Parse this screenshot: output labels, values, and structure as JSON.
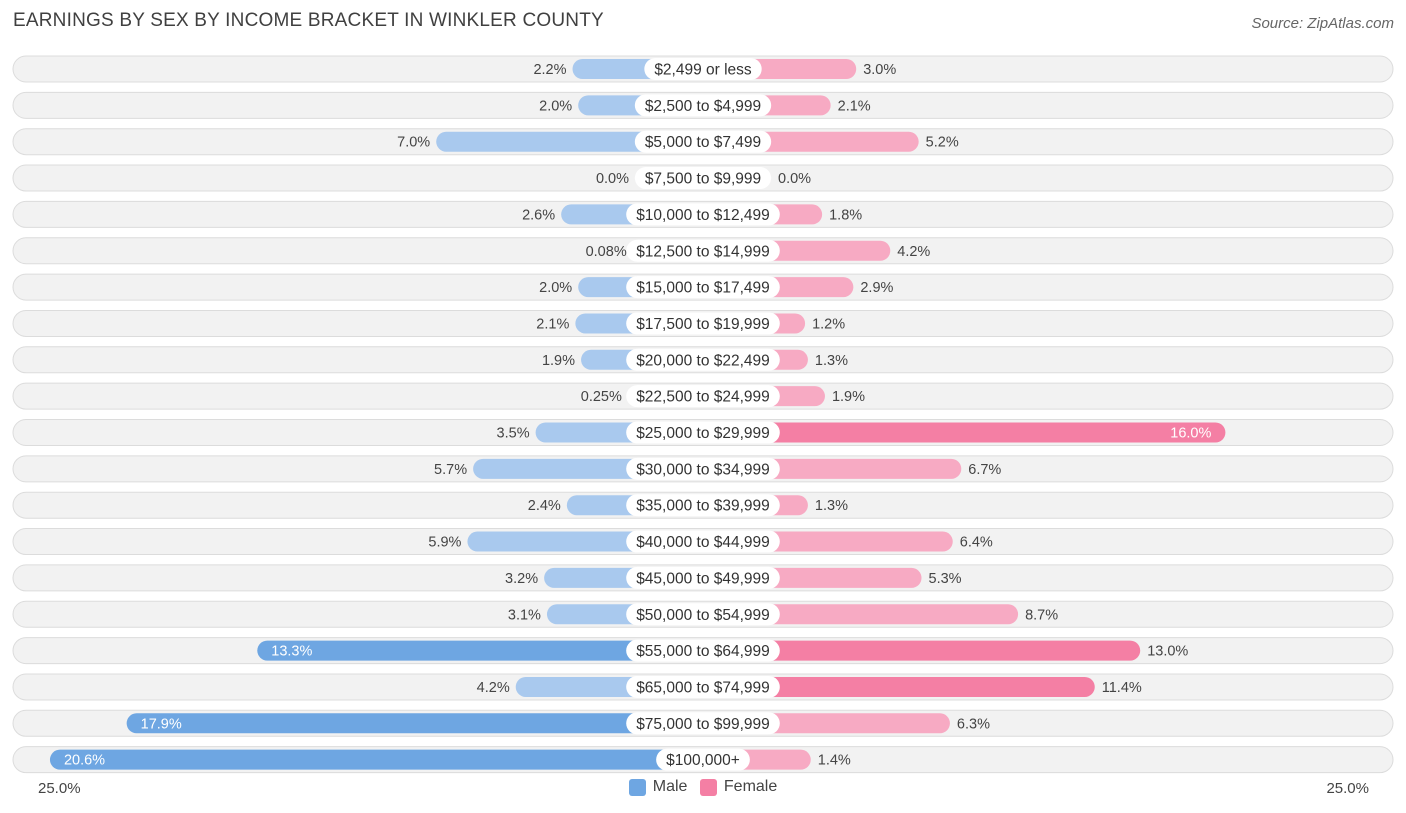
{
  "chart_data": {
    "type": "bar",
    "orientation": "horizontal-diverging",
    "title": "EARNINGS BY SEX BY INCOME BRACKET IN WINKLER COUNTY",
    "source": "Source: ZipAtlas.com",
    "xlim": [
      0,
      25.0
    ],
    "axis_labels": {
      "left": "25.0%",
      "right": "25.0%"
    },
    "categories": [
      "$2,499 or less",
      "$2,500 to $4,999",
      "$5,000 to $7,499",
      "$7,500 to $9,999",
      "$10,000 to $12,499",
      "$12,500 to $14,999",
      "$15,000 to $17,499",
      "$17,500 to $19,999",
      "$20,000 to $22,499",
      "$22,500 to $24,999",
      "$25,000 to $29,999",
      "$30,000 to $34,999",
      "$35,000 to $39,999",
      "$40,000 to $44,999",
      "$45,000 to $49,999",
      "$50,000 to $54,999",
      "$55,000 to $64,999",
      "$65,000 to $74,999",
      "$75,000 to $99,999",
      "$100,000+"
    ],
    "series": [
      {
        "name": "Male",
        "color": "#6ea6e2",
        "light_color": "#a9c9ee",
        "values": [
          2.2,
          2.0,
          7.0,
          0.0,
          2.6,
          0.08,
          2.0,
          2.1,
          1.9,
          0.25,
          3.5,
          5.7,
          2.4,
          5.9,
          3.2,
          3.1,
          13.3,
          4.2,
          17.9,
          20.6
        ],
        "labels": [
          "2.2%",
          "2.0%",
          "7.0%",
          "0.0%",
          "2.6%",
          "0.08%",
          "2.0%",
          "2.1%",
          "1.9%",
          "0.25%",
          "3.5%",
          "5.7%",
          "2.4%",
          "5.9%",
          "3.2%",
          "3.1%",
          "13.3%",
          "4.2%",
          "17.9%",
          "20.6%"
        ]
      },
      {
        "name": "Female",
        "color": "#f47fa4",
        "light_color": "#f7aac3",
        "values": [
          3.0,
          2.1,
          5.2,
          0.0,
          1.8,
          4.2,
          2.9,
          1.2,
          1.3,
          1.9,
          16.0,
          6.7,
          1.3,
          6.4,
          5.3,
          8.7,
          13.0,
          11.4,
          6.3,
          1.4
        ],
        "labels": [
          "3.0%",
          "2.1%",
          "5.2%",
          "0.0%",
          "1.8%",
          "4.2%",
          "2.9%",
          "1.2%",
          "1.3%",
          "1.9%",
          "16.0%",
          "6.7%",
          "1.3%",
          "6.4%",
          "5.3%",
          "8.7%",
          "13.0%",
          "11.4%",
          "6.3%",
          "1.4%"
        ]
      }
    ],
    "legend": [
      "Male",
      "Female"
    ]
  }
}
